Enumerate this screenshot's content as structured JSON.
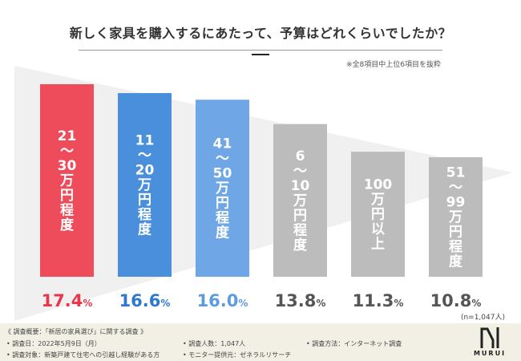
{
  "title": "新しく家具を購入するにあたって、予算はどれくらいでしたか？",
  "note": "※全8項目中上位6項目を抜粋",
  "sample_size": "(n=1,047人)",
  "chart_data": {
    "type": "bar",
    "title": "新しく家具を購入するにあたって、予算はどれくらいでしたか？",
    "categories": [
      "21〜30万円程度",
      "11〜20万円程度",
      "41〜50万円程度",
      "6〜10万円程度",
      "100万円以上",
      "51〜99万円程度"
    ],
    "label_lines": [
      [
        "21",
        "〜",
        "30",
        "万",
        "円",
        "程",
        "度"
      ],
      [
        "11",
        "〜",
        "20",
        "万",
        "円",
        "程",
        "度"
      ],
      [
        "41",
        "〜",
        "50",
        "万",
        "円",
        "程",
        "度"
      ],
      [
        "6",
        "〜",
        "10",
        "万",
        "円",
        "程",
        "度"
      ],
      [
        "100",
        "万",
        "円",
        "以",
        "上"
      ],
      [
        "51",
        "〜",
        "99",
        "万",
        "円",
        "程",
        "度"
      ]
    ],
    "values": [
      17.4,
      16.6,
      16.0,
      13.8,
      11.3,
      10.8
    ],
    "value_labels": [
      {
        "num": "17.4",
        "unit": "%"
      },
      {
        "num": "16.6",
        "unit": "%"
      },
      {
        "num": "16.0",
        "unit": "%"
      },
      {
        "num": "13.8",
        "unit": "%"
      },
      {
        "num": "11.3",
        "unit": "%"
      },
      {
        "num": "10.8",
        "unit": "%"
      }
    ],
    "xlabel": "",
    "ylabel": "",
    "ylim": [
      0,
      17.4
    ],
    "colors": [
      "#ee4b5b",
      "#4a8fdc",
      "#6ea6e6",
      "#bcbcbc",
      "#bcbcbc",
      "#bcbcbc"
    ],
    "value_colors": [
      "#e9364a",
      "#2f78d2",
      "#5c9be0",
      "#555555",
      "#555555",
      "#555555"
    ]
  },
  "footer": {
    "heading": "《 調査概要：「新居の家具選び」に関する調査 》",
    "date": "• 調査日：2022年5月9日（月）",
    "target": "• 調査対象：新築戸建て住宅への引越し経験がある方",
    "count": "• 調査人数：1,047人",
    "monitor": "• モニター提供元：ゼネラルリサーチ",
    "method": "• 調査方法：インターネット調査"
  },
  "logo": {
    "text": "MURUI"
  },
  "colors": {
    "footer_bg": "#f2efe4",
    "wedge": "#f0f0f0"
  }
}
